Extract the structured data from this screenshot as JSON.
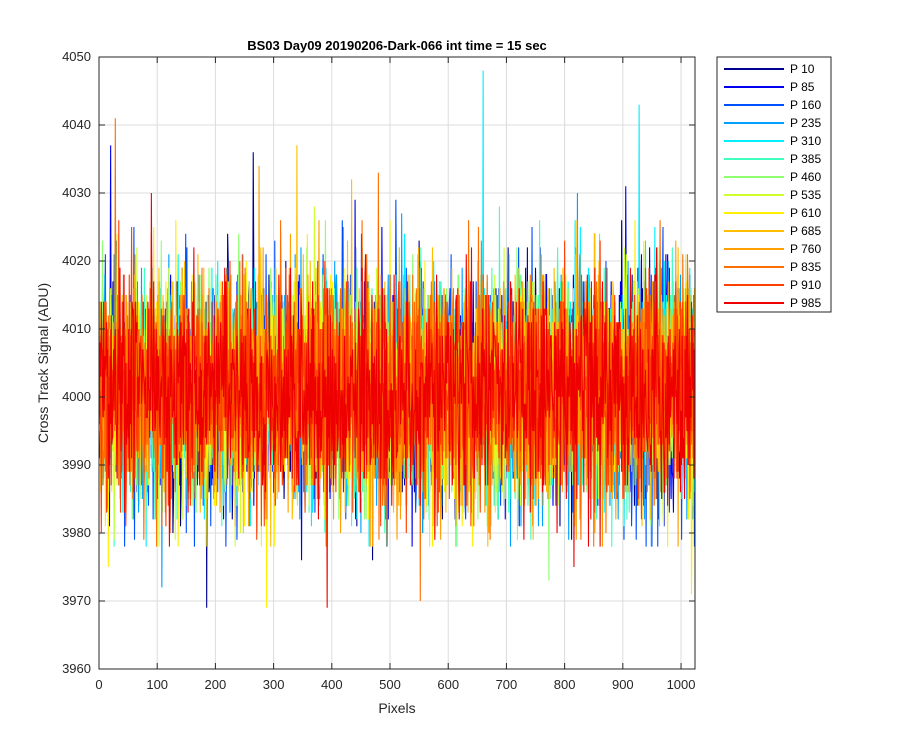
{
  "chart_data": {
    "type": "line",
    "title": "BS03 Day09 20190206-Dark-066 int time = 15 sec",
    "xlabel": "Pixels",
    "ylabel": "Cross Track Signal (ADU)",
    "xlim": [
      0,
      1024
    ],
    "ylim": [
      3960,
      4050
    ],
    "xticks": [
      0,
      100,
      200,
      300,
      400,
      500,
      600,
      700,
      800,
      900,
      1000
    ],
    "yticks": [
      3960,
      3970,
      3980,
      3990,
      4000,
      4010,
      4020,
      4030,
      4040,
      4050
    ],
    "grid": true,
    "legend_position": "outside-top-right",
    "points_per_series": 1024,
    "noise": {
      "mean": 4001,
      "std": 8
    },
    "series": [
      {
        "name": "P 10",
        "color": "#00008f",
        "spikes": [
          [
            185,
            3969
          ],
          [
            265,
            4036
          ],
          [
            470,
            3976
          ],
          [
            898,
            4026
          ]
        ]
      },
      {
        "name": "P 85",
        "color": "#0000ef",
        "spikes": [
          [
            20,
            4037
          ],
          [
            348,
            3976
          ],
          [
            440,
            4029
          ],
          [
            905,
            4031
          ]
        ]
      },
      {
        "name": "P 160",
        "color": "#0050ff",
        "spikes": [
          [
            60,
            4025
          ],
          [
            510,
            4029
          ],
          [
            640,
            3985
          ],
          [
            940,
            3978
          ]
        ]
      },
      {
        "name": "P 235",
        "color": "#00a0ff",
        "spikes": [
          [
            108,
            3972
          ],
          [
            520,
            4027
          ],
          [
            822,
            4030
          ],
          [
            1010,
            3982
          ]
        ]
      },
      {
        "name": "P 310",
        "color": "#00efff",
        "spikes": [
          [
            300,
            3989
          ],
          [
            660,
            4048
          ],
          [
            928,
            4043
          ],
          [
            995,
            3990
          ]
        ]
      },
      {
        "name": "P 385",
        "color": "#3fffbf",
        "spikes": [
          [
            150,
            3991
          ],
          [
            688,
            4028
          ],
          [
            757,
            4026
          ],
          [
            868,
            4019
          ]
        ]
      },
      {
        "name": "P 460",
        "color": "#8fff6f",
        "spikes": [
          [
            240,
            4024
          ],
          [
            456,
            3982
          ],
          [
            773,
            3973
          ],
          [
            960,
            4022
          ]
        ]
      },
      {
        "name": "P 535",
        "color": "#cfff2f",
        "spikes": [
          [
            70,
            3990
          ],
          [
            370,
            4028
          ],
          [
            720,
            3985
          ],
          [
            1005,
            4016
          ]
        ]
      },
      {
        "name": "P 610",
        "color": "#ffef00",
        "spikes": [
          [
            16,
            3975
          ],
          [
            288,
            3969
          ],
          [
            1018,
            3971
          ],
          [
            560,
            4020
          ]
        ]
      },
      {
        "name": "P 685",
        "color": "#ffbf00",
        "spikes": [
          [
            340,
            4037
          ],
          [
            434,
            4032
          ],
          [
            852,
            4024
          ],
          [
            610,
            3988
          ]
        ]
      },
      {
        "name": "P 760",
        "color": "#ff9f00",
        "spikes": [
          [
            275,
            4034
          ],
          [
            378,
            4026
          ],
          [
            760,
            4021
          ],
          [
            980,
            3995
          ]
        ]
      },
      {
        "name": "P 835",
        "color": "#ff6f00",
        "spikes": [
          [
            28,
            4041
          ],
          [
            552,
            3970
          ],
          [
            480,
            4033
          ],
          [
            805,
            3987
          ]
        ]
      },
      {
        "name": "P 910",
        "color": "#ff3f00",
        "spikes": [
          [
            90,
            4024
          ],
          [
            220,
            4019
          ],
          [
            660,
            4018
          ],
          [
            880,
            3986
          ]
        ]
      },
      {
        "name": "P 985",
        "color": "#ef0000",
        "spikes": [
          [
            392,
            3969
          ],
          [
            816,
            3975
          ],
          [
            90,
            4030
          ],
          [
            640,
            4022
          ]
        ]
      }
    ]
  }
}
